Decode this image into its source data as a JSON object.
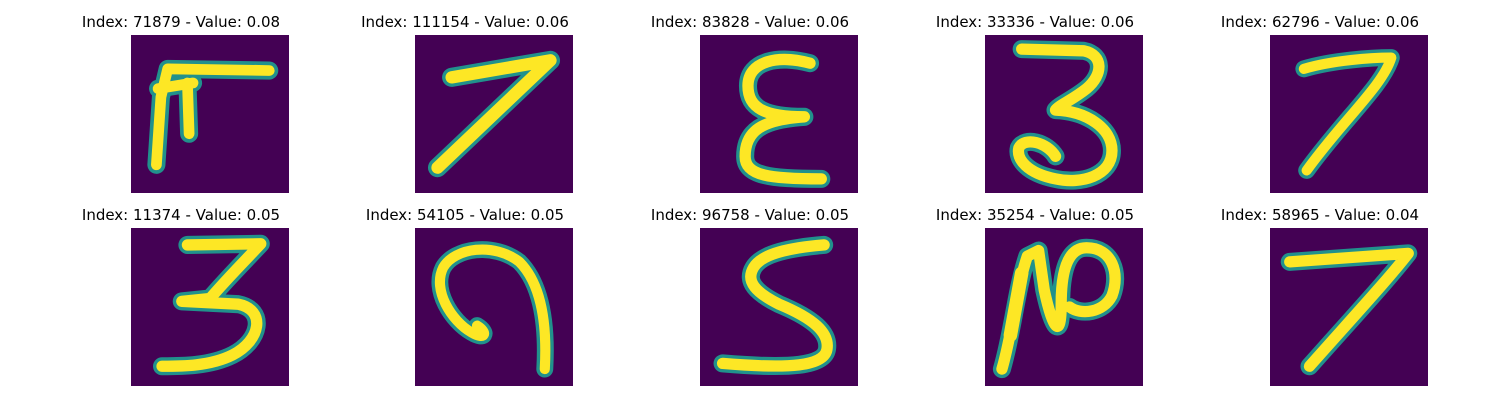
{
  "colors": {
    "background": "#440154",
    "stroke_core": "#fde725",
    "stroke_mid": "#5ec962",
    "stroke_edge": "#21918c"
  },
  "panels": [
    {
      "title": "Index: 71879 - Value: 0.08",
      "digit": "unclear"
    },
    {
      "title": "Index: 111154 - Value: 0.06",
      "digit": "7"
    },
    {
      "title": "Index: 83828 - Value: 0.06",
      "digit": "E"
    },
    {
      "title": "Index: 33336 - Value: 0.06",
      "digit": "3"
    },
    {
      "title": "Index: 62796 - Value: 0.06",
      "digit": "7"
    },
    {
      "title": "Index: 11374 - Value: 0.05",
      "digit": "3"
    },
    {
      "title": "Index: 54105 - Value: 0.05",
      "digit": "9"
    },
    {
      "title": "Index: 96758 - Value: 0.05",
      "digit": "5"
    },
    {
      "title": "Index: 35254 - Value: 0.05",
      "digit": "N"
    },
    {
      "title": "Index: 58965 - Value: 0.04",
      "digit": "7"
    }
  ]
}
